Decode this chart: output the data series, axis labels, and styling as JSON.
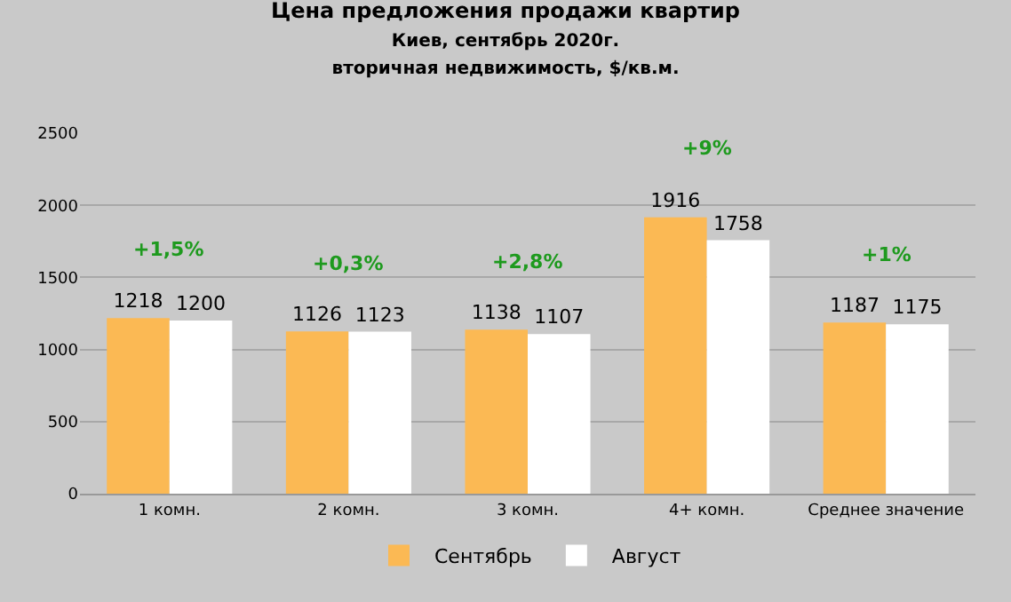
{
  "chart_data": {
    "type": "bar",
    "title": "Цена предложения продажи квартир",
    "subtitle": "Киев, сентябрь 2020г.\nвторичная недвижимость, $/кв.м.",
    "categories": [
      "1 комн.",
      "2 комн.",
      "3 комн.",
      "4+ комн.",
      "Среднее значение"
    ],
    "series": [
      {
        "name": "Сентябрь",
        "color": "#fbb954",
        "values": [
          1218,
          1126,
          1138,
          1916,
          1187
        ]
      },
      {
        "name": "Август",
        "color": "#ffffff",
        "values": [
          1200,
          1123,
          1107,
          1758,
          1175
        ]
      }
    ],
    "ylim": [
      0,
      2500
    ],
    "yticks": [
      0,
      500,
      1000,
      1500,
      2000,
      2500
    ],
    "grid": "y",
    "legend": "bottom",
    "data_labels": true,
    "annotations": [
      "+1,5%",
      "+0,3%",
      "+2,8%",
      "+9%",
      "+1%"
    ]
  }
}
